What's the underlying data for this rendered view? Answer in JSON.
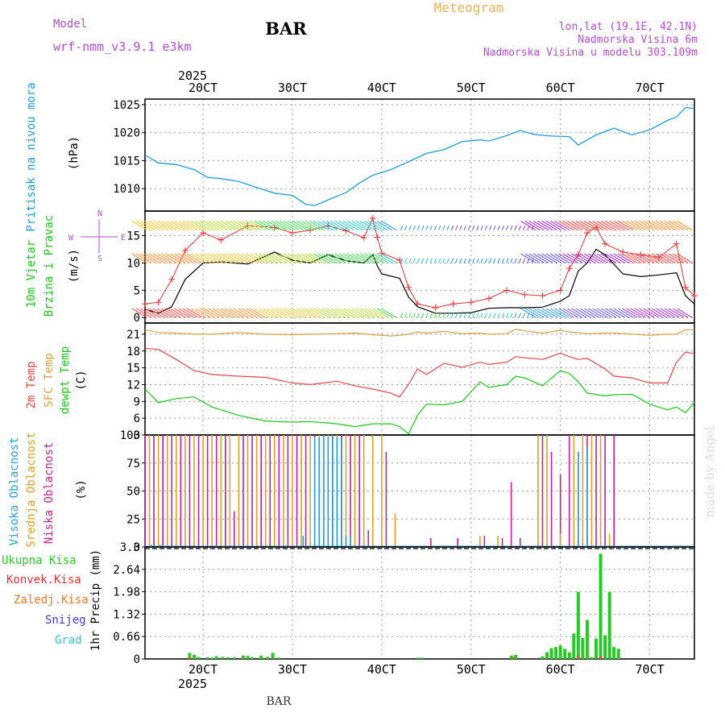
{
  "header": {
    "model_label": "Model",
    "model_name": "wrf-nmm_v3.9.1 e3km",
    "station": "BAR",
    "chart_title": "Meteogram",
    "lonlat": "lon,lat (19.1E, 42.1N)",
    "elevation": "Nadmorska Visina 6m",
    "model_elevation": "Nadmorska Visina u modelu 303.109m"
  },
  "footer": {
    "station": "BAR",
    "credit": "made by Angel"
  },
  "time_axis": {
    "year": "2025",
    "ticks": [
      "20CT",
      "30CT",
      "40CT",
      "50CT",
      "60CT",
      "70CT"
    ],
    "range_days": [
      1.35,
      7.5
    ]
  },
  "colors": {
    "pressure": "#1e9be6",
    "wind_speed": "#000000",
    "wind_gust": "#e63232",
    "t2m": "#e64646",
    "sfc_temp": "#dca03c",
    "dewpt": "#19c819",
    "low_cloud": "#c81e96",
    "mid_cloud": "#dca028",
    "high_cloud": "#28a0dc",
    "total_precip": "#28c828"
  },
  "chart_data": [
    {
      "type": "line",
      "name": "pressure",
      "label": "Pritisak na nivou mora",
      "ylabel": "(hPa)",
      "ylim": [
        1006,
        1026
      ],
      "yticks": [
        1010,
        1015,
        1020,
        1025
      ],
      "x": [
        1.35,
        1.5,
        1.7,
        1.9,
        2.05,
        2.2,
        2.4,
        2.6,
        2.8,
        3.0,
        3.15,
        3.25,
        3.4,
        3.6,
        3.75,
        3.9,
        4.1,
        4.3,
        4.5,
        4.7,
        4.9,
        5.1,
        5.2,
        5.4,
        5.55,
        5.7,
        5.9,
        6.1,
        6.2,
        6.4,
        6.6,
        6.8,
        7.0,
        7.2,
        7.3,
        7.4,
        7.5
      ],
      "series": [
        {
          "name": "MSLP",
          "values": [
            1016.0,
            1014.6,
            1014.3,
            1013.4,
            1012.0,
            1011.8,
            1011.3,
            1010.2,
            1009.2,
            1008.8,
            1007.2,
            1007.0,
            1008.0,
            1009.3,
            1011.0,
            1012.4,
            1013.4,
            1014.8,
            1016.3,
            1017.0,
            1018.4,
            1018.7,
            1018.5,
            1019.5,
            1020.4,
            1019.7,
            1019.4,
            1019.3,
            1017.8,
            1019.6,
            1020.8,
            1019.6,
            1020.5,
            1022.2,
            1022.8,
            1024.5,
            1024.3
          ]
        }
      ]
    },
    {
      "type": "line",
      "name": "wind",
      "label": "10m Vjetar Brzina i Pravac",
      "ylabel": "(m/s)",
      "ylim": [
        -1,
        19.5
      ],
      "yticks": [
        0,
        5,
        10,
        15
      ],
      "direction_legend": [
        "N",
        "W",
        "E",
        "S"
      ],
      "x": [
        1.35,
        1.5,
        1.65,
        1.8,
        2.0,
        2.2,
        2.5,
        2.8,
        3.0,
        3.2,
        3.4,
        3.6,
        3.8,
        3.9,
        3.95,
        4.0,
        4.2,
        4.3,
        4.4,
        4.6,
        4.8,
        5.0,
        5.2,
        5.4,
        5.6,
        5.8,
        6.0,
        6.1,
        6.2,
        6.3,
        6.4,
        6.5,
        6.7,
        6.9,
        7.1,
        7.3,
        7.4,
        7.5
      ],
      "series": [
        {
          "name": "speed",
          "values": [
            1.5,
            0.8,
            2.0,
            7.0,
            10.0,
            10.2,
            9.8,
            12.0,
            10.5,
            10.0,
            11.5,
            10.4,
            10.0,
            11.5,
            9.5,
            8.0,
            7.2,
            3.8,
            2.0,
            0.8,
            0.8,
            0.9,
            1.7,
            1.8,
            1.8,
            1.9,
            3.0,
            4.0,
            8.5,
            10.0,
            12.5,
            11.5,
            8.0,
            7.5,
            7.8,
            8.2,
            4.0,
            2.5
          ]
        },
        {
          "name": "gust",
          "values": [
            2.5,
            2.8,
            7.0,
            12.3,
            15.5,
            14.2,
            16.8,
            16.5,
            15.5,
            16.0,
            16.8,
            15.9,
            14.6,
            18.2,
            14.7,
            11.8,
            10.5,
            5.5,
            2.5,
            1.8,
            2.5,
            2.8,
            3.5,
            5.0,
            4.2,
            4.0,
            5.0,
            9.0,
            11.5,
            15.5,
            16.5,
            13.5,
            12.0,
            11.5,
            11.0,
            13.5,
            5.5,
            4.0
          ]
        }
      ]
    },
    {
      "type": "line",
      "name": "temperature",
      "label_t2m": "2m Temp",
      "label_sfc": "SFC Temp",
      "label_dewpt": "dewpt Temp",
      "ylabel": "(C)",
      "ylim": [
        3,
        23
      ],
      "yticks": [
        3,
        6,
        9,
        12,
        15,
        18,
        21
      ],
      "x": [
        1.35,
        1.5,
        1.7,
        1.9,
        2.1,
        2.4,
        2.7,
        3.0,
        3.2,
        3.5,
        3.7,
        3.9,
        4.1,
        4.2,
        4.3,
        4.4,
        4.5,
        4.7,
        4.9,
        5.1,
        5.2,
        5.4,
        5.5,
        5.6,
        5.8,
        6.0,
        6.1,
        6.2,
        6.3,
        6.5,
        6.6,
        6.8,
        7.0,
        7.2,
        7.3,
        7.4,
        7.5
      ],
      "series": [
        {
          "name": "2m Temp",
          "values": [
            18.5,
            18.3,
            16.5,
            14.5,
            13.8,
            13.5,
            13.3,
            12.3,
            12.0,
            12.6,
            11.8,
            11.2,
            10.5,
            9.8,
            12.0,
            14.8,
            13.8,
            15.8,
            15.1,
            16.0,
            15.6,
            16.0,
            17.0,
            16.8,
            16.5,
            17.6,
            17.0,
            16.5,
            16.7,
            14.8,
            13.5,
            13.2,
            12.3,
            12.3,
            16.0,
            17.8,
            17.5
          ]
        },
        {
          "name": "SFC Temp",
          "values": [
            21.8,
            21.3,
            21.2,
            21.0,
            21.0,
            21.3,
            21.0,
            20.9,
            21.0,
            21.1,
            21.2,
            20.9,
            20.7,
            20.8,
            21.0,
            21.4,
            21.2,
            21.5,
            21.1,
            21.2,
            21.0,
            21.1,
            21.9,
            21.6,
            21.2,
            21.7,
            21.4,
            21.3,
            21.1,
            21.2,
            21.2,
            21.0,
            20.8,
            21.0,
            21.0,
            21.8,
            21.8
          ]
        },
        {
          "name": "dewpt Temp",
          "values": [
            11.2,
            8.8,
            9.5,
            9.8,
            8.0,
            6.5,
            5.5,
            5.3,
            5.4,
            5.0,
            4.5,
            5.0,
            5.0,
            4.5,
            3.2,
            6.5,
            8.5,
            8.4,
            9.0,
            12.5,
            11.5,
            12.0,
            13.5,
            13.2,
            11.8,
            14.5,
            14.0,
            12.5,
            10.5,
            10.0,
            10.2,
            10.3,
            8.5,
            7.5,
            8.0,
            7.0,
            8.8
          ]
        }
      ]
    },
    {
      "type": "bar",
      "name": "cloud_cover",
      "label_high": "Visoka Oblacnost",
      "label_mid": "Srednja Oblacnost",
      "label_low": "Niska Oblacnost",
      "ylabel": "(%)",
      "ylim": [
        0,
        100
      ],
      "yticks": [
        0,
        25,
        50,
        75,
        100
      ],
      "series": [
        {
          "name": "Niska",
          "x": [
            1.35,
            1.45,
            1.55,
            1.65,
            1.75,
            1.85,
            1.95,
            2.05,
            2.15,
            2.25,
            2.35,
            2.45,
            2.55,
            2.65,
            2.75,
            2.85,
            2.95,
            3.05,
            3.15,
            3.25,
            3.35,
            3.45,
            3.55,
            3.65,
            3.75,
            3.85,
            4.05,
            4.55,
            4.85,
            5.15,
            5.35,
            5.45,
            5.55,
            5.8,
            5.9,
            6.0,
            6.1,
            6.2,
            6.3,
            6.4,
            6.5,
            6.6
          ],
          "values": [
            100,
            100,
            100,
            100,
            100,
            100,
            100,
            100,
            100,
            100,
            32,
            100,
            100,
            100,
            100,
            100,
            100,
            100,
            100,
            100,
            100,
            100,
            100,
            100,
            100,
            15,
            85,
            8,
            8,
            10,
            8,
            58,
            8,
            100,
            85,
            65,
            100,
            85,
            100,
            100,
            100,
            100
          ]
        },
        {
          "name": "Srednja",
          "x": [
            1.4,
            1.5,
            1.6,
            1.7,
            1.8,
            1.9,
            2.0,
            2.1,
            2.2,
            2.3,
            2.4,
            2.5,
            2.6,
            2.7,
            2.8,
            2.9,
            3.0,
            3.1,
            3.2,
            3.3,
            3.4,
            3.5,
            3.6,
            3.7,
            3.8,
            3.9,
            4.0,
            4.15,
            5.1,
            5.3,
            5.75,
            5.85,
            6.0,
            6.15,
            6.25,
            6.35,
            6.45,
            6.55
          ],
          "values": [
            100,
            100,
            100,
            100,
            100,
            100,
            100,
            100,
            100,
            100,
            100,
            100,
            100,
            100,
            100,
            100,
            100,
            100,
            100,
            100,
            100,
            100,
            100,
            100,
            100,
            100,
            100,
            30,
            10,
            10,
            100,
            100,
            12,
            100,
            100,
            100,
            100,
            12
          ]
        },
        {
          "name": "Visoka",
          "x": [
            1.42,
            1.52,
            3.12,
            3.25,
            3.3,
            3.35,
            3.4,
            3.45,
            3.5,
            3.55,
            3.6,
            3.65,
            6.2,
            6.3
          ],
          "values": [
            2,
            2,
            10,
            98,
            98,
            100,
            98,
            100,
            98,
            96,
            10,
            10,
            85,
            90
          ]
        }
      ]
    },
    {
      "type": "bar",
      "name": "precipitation",
      "label_total": "Ukupna Kisa",
      "label_conv": "Konvek.Kisa",
      "label_frozen": "Zaledj.Kisa",
      "label_snow": "Snijeg",
      "label_hail": "Grad",
      "ylabel": "1hr Precip (mm)",
      "ylim": [
        0,
        3.3
      ],
      "yticks": [
        0,
        0.66,
        1.32,
        1.98,
        2.64,
        3.3
      ],
      "series": [
        {
          "name": "Ukupna Kisa",
          "x": [
            1.85,
            1.9,
            1.95,
            2.05,
            2.1,
            2.15,
            2.22,
            2.28,
            2.35,
            2.45,
            2.5,
            2.55,
            2.65,
            2.72,
            2.78,
            2.85,
            4.4,
            4.45,
            5.45,
            5.5,
            5.8,
            5.85,
            5.9,
            5.95,
            6.0,
            6.05,
            6.1,
            6.15,
            6.2,
            6.25,
            6.3,
            6.35,
            6.4,
            6.45,
            6.5,
            6.55,
            6.6,
            6.65
          ],
          "values": [
            0.18,
            0.12,
            0.06,
            0.05,
            0.04,
            0.08,
            0.06,
            0.05,
            0.05,
            0.1,
            0.09,
            0.05,
            0.1,
            0.06,
            0.18,
            0.04,
            0.04,
            0.04,
            0.1,
            0.12,
            0.08,
            0.2,
            0.32,
            0.35,
            0.4,
            0.3,
            0.2,
            0.75,
            1.98,
            0.62,
            1.15,
            0.05,
            0.6,
            3.1,
            0.7,
            1.98,
            0.35,
            0.3
          ]
        },
        {
          "name": "Konvek.Kisa",
          "x": [
            1.85,
            2.45,
            2.78,
            5.48,
            5.85,
            6.2,
            6.45
          ],
          "values": [
            0.04,
            0.02,
            0.03,
            0.06,
            0.03,
            0.1,
            0.08
          ]
        }
      ]
    }
  ]
}
